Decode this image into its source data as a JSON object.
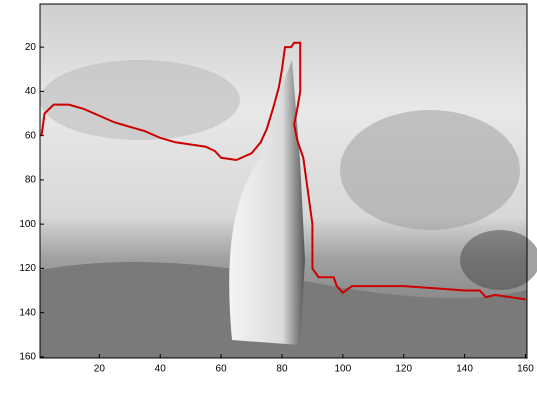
{
  "chart_data": {
    "type": "line",
    "xlim": [
      0.5,
      160.5
    ],
    "xticks": [
      20,
      40,
      60,
      80,
      100,
      120,
      140,
      160
    ],
    "ylim": [
      0.5,
      160.5
    ],
    "yticks": [
      20,
      40,
      60,
      80,
      100,
      120,
      140,
      160
    ],
    "y_reversed": true,
    "series": [
      {
        "color": "#cc0000",
        "x": [
          1,
          2,
          5,
          10,
          15,
          20,
          25,
          30,
          35,
          40,
          45,
          50,
          55,
          58,
          60,
          65,
          70,
          73,
          75,
          77,
          79,
          80,
          81,
          83,
          84,
          86,
          86,
          86,
          85,
          84,
          85,
          87,
          88,
          89,
          90,
          90,
          90,
          92,
          97,
          98,
          100,
          103,
          110,
          120,
          130,
          140,
          145,
          147,
          150,
          155,
          160
        ],
        "values": [
          60,
          50,
          46,
          46,
          48,
          51,
          54,
          56,
          58,
          61,
          63,
          64,
          65,
          67,
          70,
          71,
          68,
          63,
          57,
          48,
          38,
          30,
          20,
          20,
          18,
          18,
          30,
          40,
          48,
          55,
          62,
          70,
          80,
          90,
          100,
          110,
          120,
          124,
          124,
          128,
          131,
          128,
          128,
          128,
          129,
          130,
          130,
          133,
          132,
          133,
          134
        ]
      }
    ]
  }
}
